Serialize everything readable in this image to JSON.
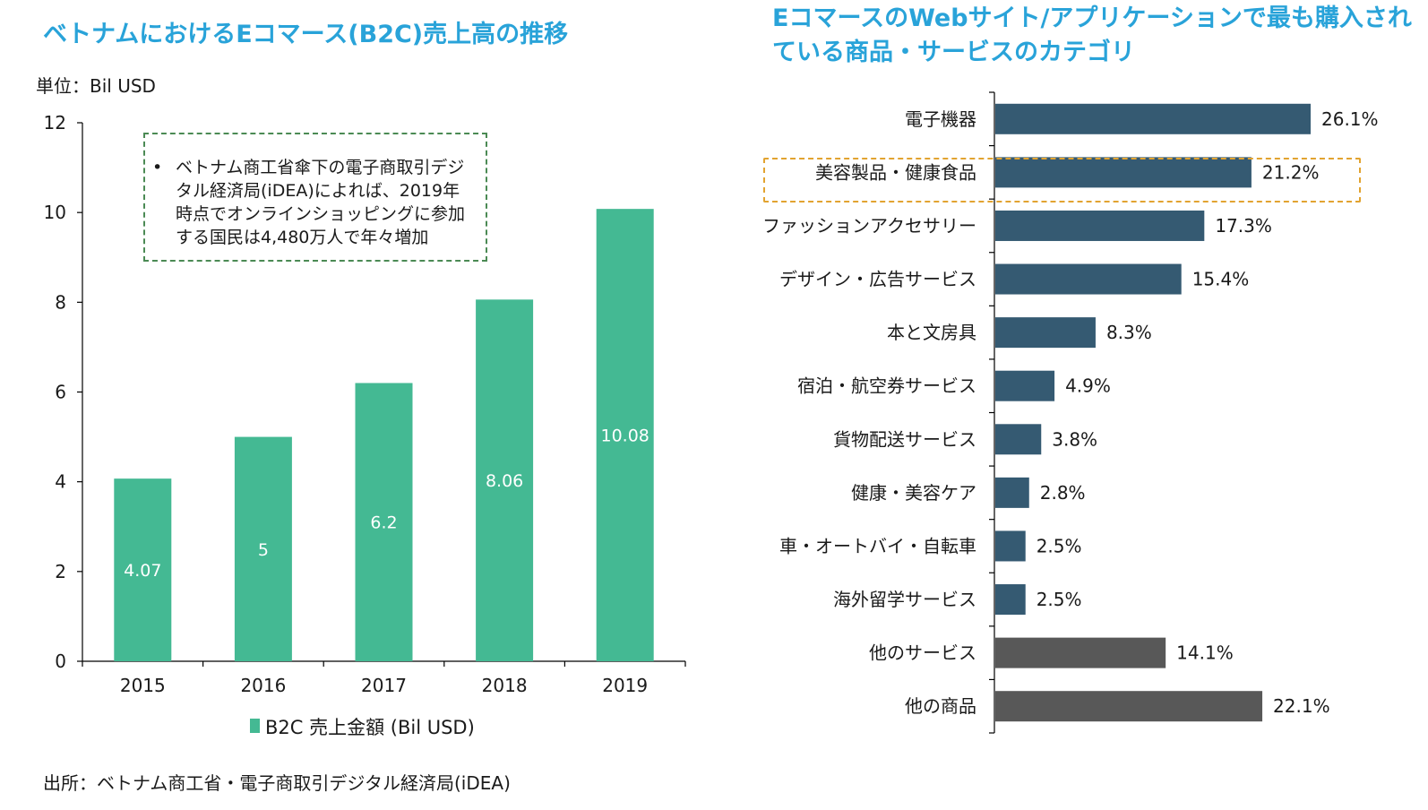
{
  "left": {
    "title": "ベトナムにおけるEコマース(B2C)売上高の推移",
    "unit": "単位：Bil USD",
    "note": "ベトナム商工省傘下の電子商取引デジタル経済局(iDEA)によれば、2019年時点でオンラインショッピングに参加する国民は4,480万人で年々増加",
    "source": "出所：ベトナム商工省・電子商取引デジタル経済局(iDEA)"
  },
  "right": {
    "title": "EコマースのWebサイト/アプリケーションで最も購入されている商品・サービスのカテゴリ"
  },
  "colors": {
    "title": "#29a3d9",
    "bar_left": "#44b993",
    "bar_right_main": "#355a72",
    "bar_right_other": "#585858",
    "note_border": "#4b8a54",
    "highlight_border": "#e2a330"
  },
  "chart_data": [
    {
      "type": "bar",
      "categories": [
        "2015",
        "2016",
        "2017",
        "2018",
        "2019"
      ],
      "series": [
        {
          "name": "B2C 売上金額 (Bil USD)",
          "values": [
            4.07,
            5,
            6.2,
            8.06,
            10.08
          ]
        }
      ],
      "value_labels": [
        "4.07",
        "5",
        "6.2",
        "8.06",
        "10.08"
      ],
      "ylim": [
        0,
        12
      ],
      "yticks": [
        "0",
        "2",
        "4",
        "6",
        "8",
        "10",
        "12"
      ],
      "legend": "bottom",
      "grid": false
    },
    {
      "type": "bar",
      "orientation": "horizontal",
      "categories": [
        "電子機器",
        "美容製品・健康食品",
        "ファッションアクセサリー",
        "デザイン・広告サービス",
        "本と文房具",
        "宿泊・航空券サービス",
        "貨物配送サービス",
        "健康・美容ケア",
        "車・オートバイ・自転車",
        "海外留学サービス",
        "他のサービス",
        "他の商品"
      ],
      "values": [
        26.1,
        21.2,
        17.3,
        15.4,
        8.3,
        4.9,
        3.8,
        2.8,
        2.5,
        2.5,
        14.1,
        22.1
      ],
      "value_labels": [
        "26.1%",
        "21.2%",
        "17.3%",
        "15.4%",
        "8.3%",
        "4.9%",
        "3.8%",
        "2.8%",
        "2.5%",
        "2.5%",
        "14.1%",
        "22.1%"
      ],
      "group": [
        "main",
        "main",
        "main",
        "main",
        "main",
        "main",
        "main",
        "main",
        "main",
        "main",
        "other",
        "other"
      ],
      "highlighted": "美容製品・健康食品",
      "grid": false
    }
  ]
}
